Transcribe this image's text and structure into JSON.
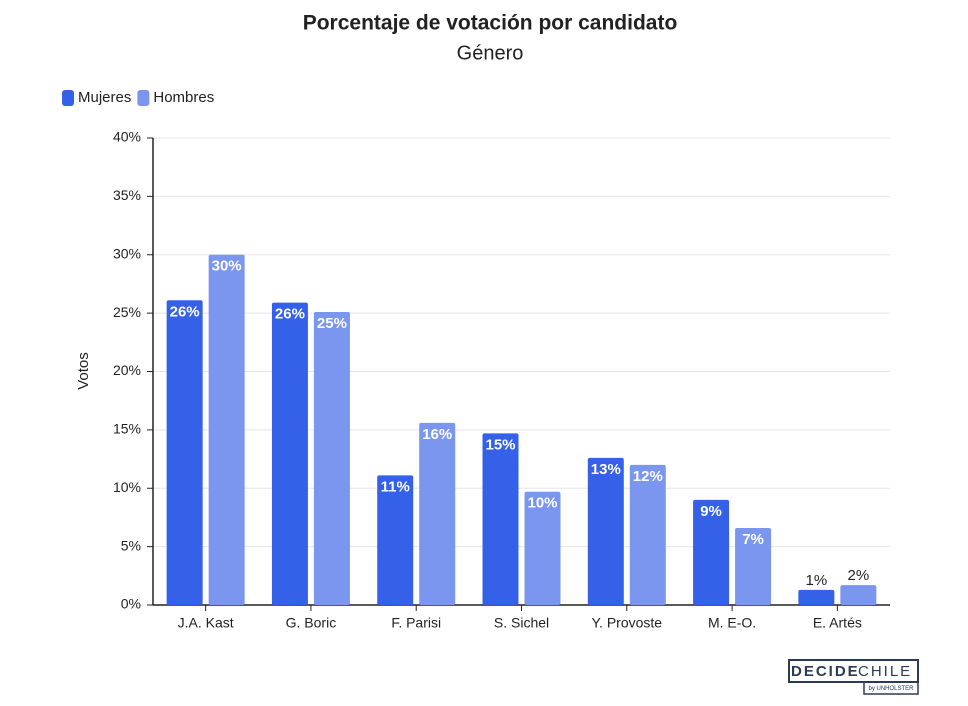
{
  "chart_data": {
    "type": "bar",
    "title": "Porcentaje de votación por candidato",
    "subtitle": "Género",
    "y_label": "Votos",
    "categories": [
      "J.A. Kast",
      "G. Boric",
      "F. Parisi",
      "S. Sichel",
      "Y. Provoste",
      "M. E-O.",
      "E. Artés"
    ],
    "series": [
      {
        "name": "Mujeres",
        "color": "#3560e8",
        "values": [
          26.1,
          25.9,
          11.1,
          14.7,
          12.6,
          9.0,
          1.3
        ],
        "value_labels": [
          "26%",
          "26%",
          "11%",
          "15%",
          "13%",
          "9%",
          "1%"
        ]
      },
      {
        "name": "Hombres",
        "color": "#7a96ee",
        "values": [
          30.0,
          25.1,
          15.6,
          9.7,
          12.0,
          6.6,
          1.7
        ],
        "value_labels": [
          "30%",
          "25%",
          "16%",
          "10%",
          "12%",
          "7%",
          "2%"
        ]
      }
    ],
    "ylim": [
      0,
      40
    ],
    "yticks": [
      {
        "value": 0,
        "label": "0%"
      },
      {
        "value": 5,
        "label": "5%"
      },
      {
        "value": 10,
        "label": "10%"
      },
      {
        "value": 15,
        "label": "15%"
      },
      {
        "value": 20,
        "label": "20%"
      },
      {
        "value": 25,
        "label": "25%"
      },
      {
        "value": 30,
        "label": "30%"
      },
      {
        "value": 35,
        "label": "35%"
      },
      {
        "value": 40,
        "label": "40%"
      }
    ],
    "grid": true,
    "legend": "top-left"
  },
  "footer": {
    "brand_a": "DECIDE",
    "brand_b": "CHILE",
    "byline": "by UNHOLSTER"
  }
}
